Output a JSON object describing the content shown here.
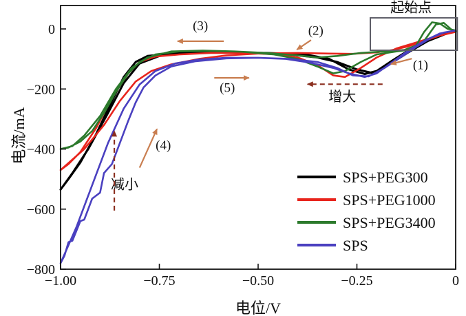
{
  "chart_data": {
    "type": "line",
    "title": "",
    "xlabel": "电位/V",
    "ylabel": "电流/mA",
    "xlim": [
      -1.0,
      0.0
    ],
    "ylim": [
      -800,
      78
    ],
    "grid": false,
    "legend_position": "inside lower-right",
    "x_ticks": [
      -1.0,
      -0.75,
      -0.5,
      -0.25,
      0
    ],
    "x_tick_labels": [
      "−1.00",
      "−0.75",
      "−0.50",
      "−0.25",
      "0"
    ],
    "y_ticks": [
      0,
      -200,
      -400,
      -600,
      -800
    ],
    "y_tick_labels": [
      "0",
      "−200",
      "−400",
      "−600",
      "−800"
    ],
    "series": [
      {
        "name": "SPS+PEG300",
        "color": "#000000",
        "width": 3,
        "points": [
          [
            0,
            -8
          ],
          [
            -0.04,
            -20
          ],
          [
            -0.08,
            -42
          ],
          [
            -0.12,
            -72
          ],
          [
            -0.16,
            -105
          ],
          [
            -0.2,
            -140
          ],
          [
            -0.23,
            -150
          ],
          [
            -0.27,
            -135
          ],
          [
            -0.32,
            -100
          ],
          [
            -0.38,
            -85
          ],
          [
            -0.48,
            -80
          ],
          [
            -0.58,
            -78
          ],
          [
            -0.68,
            -80
          ],
          [
            -0.75,
            -90
          ],
          [
            -0.8,
            -115
          ],
          [
            -0.84,
            -180
          ],
          [
            -0.88,
            -280
          ],
          [
            -0.93,
            -400
          ],
          [
            -0.97,
            -480
          ],
          [
            -1.0,
            -535
          ],
          [
            -0.98,
            -500
          ],
          [
            -0.95,
            -445
          ],
          [
            -0.91,
            -350
          ],
          [
            -0.87,
            -240
          ],
          [
            -0.84,
            -160
          ],
          [
            -0.81,
            -110
          ],
          [
            -0.78,
            -90
          ],
          [
            -0.7,
            -80
          ],
          [
            -0.6,
            -78
          ],
          [
            -0.5,
            -80
          ],
          [
            -0.42,
            -85
          ],
          [
            -0.35,
            -95
          ],
          [
            -0.3,
            -110
          ],
          [
            -0.25,
            -135
          ],
          [
            -0.21,
            -147
          ],
          [
            -0.17,
            -120
          ],
          [
            -0.12,
            -78
          ],
          [
            -0.07,
            -40
          ],
          [
            -0.02,
            -14
          ],
          [
            0,
            -8
          ]
        ]
      },
      {
        "name": "SPS+PEG1000",
        "color": "#e8241c",
        "width": 2.6,
        "points": [
          [
            0,
            -10
          ],
          [
            -0.04,
            -22
          ],
          [
            -0.08,
            -40
          ],
          [
            -0.12,
            -58
          ],
          [
            -0.16,
            -70
          ],
          [
            -0.2,
            -78
          ],
          [
            -0.26,
            -83
          ],
          [
            -0.32,
            -82
          ],
          [
            -0.4,
            -80
          ],
          [
            -0.5,
            -82
          ],
          [
            -0.58,
            -88
          ],
          [
            -0.65,
            -100
          ],
          [
            -0.72,
            -118
          ],
          [
            -0.77,
            -140
          ],
          [
            -0.81,
            -175
          ],
          [
            -0.85,
            -240
          ],
          [
            -0.89,
            -320
          ],
          [
            -0.94,
            -400
          ],
          [
            -1.0,
            -470
          ],
          [
            -0.98,
            -450
          ],
          [
            -0.95,
            -410
          ],
          [
            -0.91,
            -330
          ],
          [
            -0.87,
            -230
          ],
          [
            -0.83,
            -150
          ],
          [
            -0.8,
            -110
          ],
          [
            -0.76,
            -92
          ],
          [
            -0.7,
            -85
          ],
          [
            -0.62,
            -80
          ],
          [
            -0.54,
            -80
          ],
          [
            -0.46,
            -84
          ],
          [
            -0.4,
            -95
          ],
          [
            -0.35,
            -120
          ],
          [
            -0.31,
            -155
          ],
          [
            -0.28,
            -160
          ],
          [
            -0.24,
            -130
          ],
          [
            -0.2,
            -95
          ],
          [
            -0.15,
            -65
          ],
          [
            -0.1,
            -45
          ],
          [
            -0.05,
            -25
          ],
          [
            0,
            -10
          ]
        ]
      },
      {
        "name": "SPS+PEG3400",
        "color": "#2c7a2c",
        "width": 2.6,
        "points": [
          [
            0,
            -5
          ],
          [
            -0.02,
            0
          ],
          [
            -0.04,
            18
          ],
          [
            -0.06,
            22
          ],
          [
            -0.08,
            -10
          ],
          [
            -0.1,
            -55
          ],
          [
            -0.13,
            -70
          ],
          [
            -0.18,
            -75
          ],
          [
            -0.24,
            -80
          ],
          [
            -0.3,
            -90
          ],
          [
            -0.35,
            -95
          ],
          [
            -0.4,
            -88
          ],
          [
            -0.48,
            -80
          ],
          [
            -0.56,
            -75
          ],
          [
            -0.64,
            -72
          ],
          [
            -0.72,
            -75
          ],
          [
            -0.78,
            -95
          ],
          [
            -0.82,
            -130
          ],
          [
            -0.86,
            -200
          ],
          [
            -0.9,
            -290
          ],
          [
            -0.94,
            -355
          ],
          [
            -0.97,
            -390
          ],
          [
            -1.0,
            -400
          ],
          [
            -0.98,
            -395
          ],
          [
            -0.95,
            -375
          ],
          [
            -0.92,
            -340
          ],
          [
            -0.89,
            -280
          ],
          [
            -0.86,
            -210
          ],
          [
            -0.83,
            -150
          ],
          [
            -0.8,
            -110
          ],
          [
            -0.76,
            -85
          ],
          [
            -0.7,
            -75
          ],
          [
            -0.62,
            -73
          ],
          [
            -0.54,
            -76
          ],
          [
            -0.46,
            -85
          ],
          [
            -0.4,
            -100
          ],
          [
            -0.35,
            -125
          ],
          [
            -0.31,
            -148
          ],
          [
            -0.28,
            -140
          ],
          [
            -0.24,
            -110
          ],
          [
            -0.2,
            -85
          ],
          [
            -0.15,
            -75
          ],
          [
            -0.11,
            -68
          ],
          [
            -0.08,
            -40
          ],
          [
            -0.05,
            15
          ],
          [
            -0.03,
            20
          ],
          [
            -0.01,
            -3
          ],
          [
            0,
            -8
          ]
        ]
      },
      {
        "name": "SPS",
        "color": "#4a40c0",
        "width": 2.6,
        "points": [
          [
            0,
            -5
          ],
          [
            -0.03,
            -12
          ],
          [
            -0.06,
            -28
          ],
          [
            -0.1,
            -60
          ],
          [
            -0.14,
            -95
          ],
          [
            -0.18,
            -130
          ],
          [
            -0.22,
            -158
          ],
          [
            -0.26,
            -155
          ],
          [
            -0.3,
            -130
          ],
          [
            -0.35,
            -110
          ],
          [
            -0.42,
            -100
          ],
          [
            -0.5,
            -96
          ],
          [
            -0.58,
            -96
          ],
          [
            -0.65,
            -102
          ],
          [
            -0.71,
            -115
          ],
          [
            -0.76,
            -140
          ],
          [
            -0.8,
            -185
          ],
          [
            -0.84,
            -265
          ],
          [
            -0.88,
            -380
          ],
          [
            -0.92,
            -520
          ],
          [
            -0.96,
            -660
          ],
          [
            -1.0,
            -780
          ],
          [
            -0.99,
            -755
          ],
          [
            -0.98,
            -710
          ],
          [
            -0.97,
            -705
          ],
          [
            -0.95,
            -640
          ],
          [
            -0.94,
            -635
          ],
          [
            -0.92,
            -565
          ],
          [
            -0.9,
            -545
          ],
          [
            -0.89,
            -480
          ],
          [
            -0.87,
            -450
          ],
          [
            -0.85,
            -380
          ],
          [
            -0.83,
            -310
          ],
          [
            -0.81,
            -245
          ],
          [
            -0.79,
            -195
          ],
          [
            -0.76,
            -155
          ],
          [
            -0.72,
            -125
          ],
          [
            -0.66,
            -108
          ],
          [
            -0.58,
            -98
          ],
          [
            -0.5,
            -96
          ],
          [
            -0.43,
            -100
          ],
          [
            -0.37,
            -112
          ],
          [
            -0.31,
            -130
          ],
          [
            -0.27,
            -148
          ],
          [
            -0.23,
            -160
          ],
          [
            -0.2,
            -148
          ],
          [
            -0.16,
            -110
          ],
          [
            -0.12,
            -72
          ],
          [
            -0.08,
            -40
          ],
          [
            -0.04,
            -15
          ],
          [
            0,
            -5
          ]
        ]
      }
    ],
    "annotations": [
      {
        "kind": "rect",
        "name": "start-point-box",
        "x1": -0.216,
        "y1": -71,
        "x2": 0.004,
        "y2": 37,
        "color": "#5c5c66"
      },
      {
        "kind": "text",
        "name": "start-point-label",
        "label": "起始点",
        "x": -0.113,
        "y": 67,
        "color": "#111111",
        "size": 20
      },
      {
        "kind": "text",
        "name": "step-1-label",
        "label": "(1)",
        "x": -0.089,
        "y": -124,
        "color": "#c97e50",
        "size": 19
      },
      {
        "kind": "arrow",
        "name": "step-1-arrow",
        "x1": -0.111,
        "y1": -99,
        "x2": -0.164,
        "y2": -117,
        "color": "#c97e50"
      },
      {
        "kind": "text",
        "name": "step-2-label",
        "label": "(2)",
        "x": -0.354,
        "y": -9,
        "color": "#c97e50",
        "size": 19
      },
      {
        "kind": "arrow",
        "name": "step-2-arrow",
        "x1": -0.366,
        "y1": -37,
        "x2": -0.402,
        "y2": -69,
        "color": "#c97e50"
      },
      {
        "kind": "text",
        "name": "step-3-label",
        "label": "(3)",
        "x": -0.646,
        "y": 7,
        "color": "#c97e50",
        "size": 19
      },
      {
        "kind": "arrow",
        "name": "step-3-arrow",
        "x1": -0.587,
        "y1": -41,
        "x2": -0.704,
        "y2": -41,
        "color": "#c97e50"
      },
      {
        "kind": "text",
        "name": "step-4-label",
        "label": "(4)",
        "x": -0.74,
        "y": -391,
        "color": "#c97e50",
        "size": 19
      },
      {
        "kind": "arrow",
        "name": "step-4-arrow",
        "x1": -0.8,
        "y1": -462,
        "x2": -0.756,
        "y2": -333,
        "color": "#c97e50"
      },
      {
        "kind": "text",
        "name": "step-5-label",
        "label": "(5)",
        "x": -0.578,
        "y": -200,
        "color": "#c97e50",
        "size": 19
      },
      {
        "kind": "arrow",
        "name": "step-5-arrow",
        "x1": -0.611,
        "y1": -163,
        "x2": -0.523,
        "y2": -163,
        "color": "#c97e50"
      },
      {
        "kind": "text",
        "name": "increase-label",
        "label": "增大",
        "x": -0.287,
        "y": -230,
        "color": "#111111",
        "size": 20
      },
      {
        "kind": "arrow",
        "name": "increase-arrow",
        "x1": -0.185,
        "y1": -184,
        "x2": -0.375,
        "y2": -184,
        "color": "#8b2f1f",
        "dashed": true
      },
      {
        "kind": "text",
        "name": "decrease-label",
        "label": "减小",
        "x": -0.838,
        "y": -522,
        "color": "#111111",
        "size": 20
      },
      {
        "kind": "arrow",
        "name": "decrease-arrow",
        "x1": -0.864,
        "y1": -605,
        "x2": -0.864,
        "y2": -340,
        "color": "#8b2f1f",
        "dashed": true
      }
    ]
  }
}
